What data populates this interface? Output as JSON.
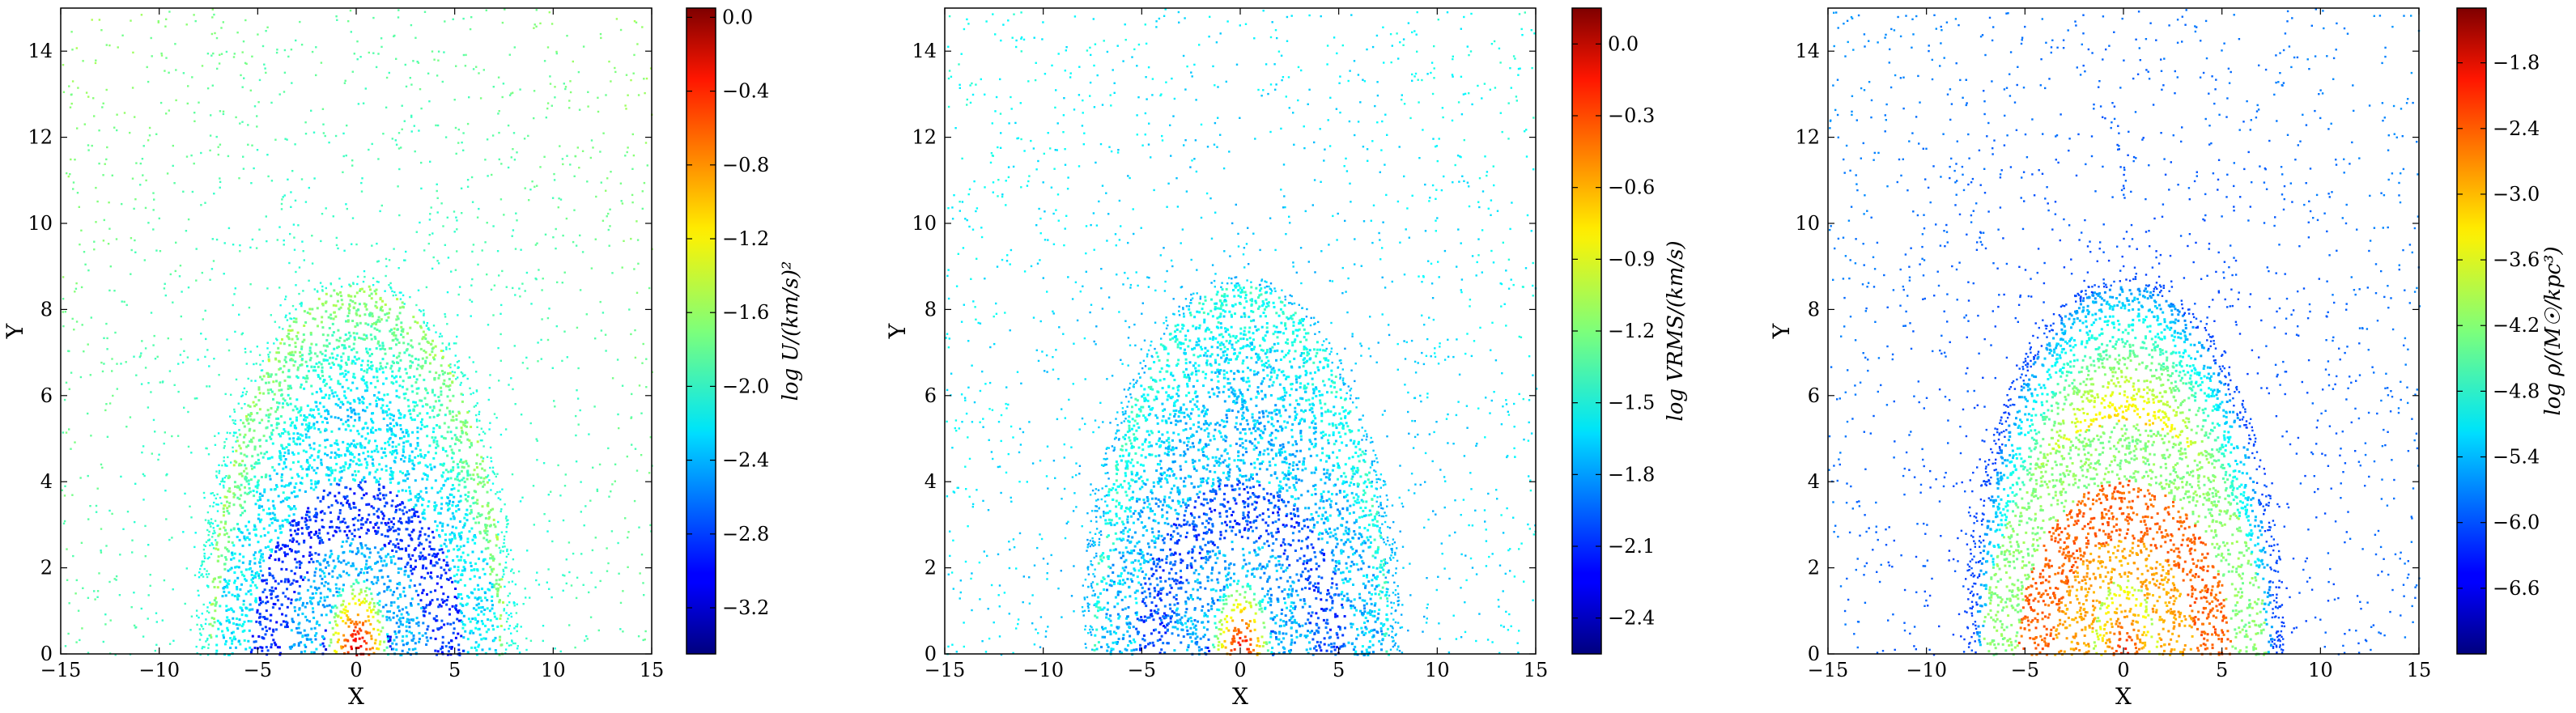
{
  "chart_data": [
    {
      "type": "scatter",
      "xlabel": "X",
      "ylabel": "Y",
      "xlim": [
        -15,
        15
      ],
      "ylim": [
        0,
        15
      ],
      "xticks": [
        -15,
        -10,
        -5,
        0,
        5,
        10,
        15
      ],
      "yticks": [
        0,
        2,
        4,
        6,
        8,
        10,
        12,
        14
      ],
      "colorbar": {
        "label": "log U/(km/s)²",
        "range": [
          -3.45,
          0.05
        ],
        "ticks": [
          0.0,
          -0.4,
          -0.8,
          -1.2,
          -1.6,
          -2.0,
          -2.4,
          -2.8,
          -3.2
        ],
        "tick_labels": [
          "0.0",
          "−0.4",
          "−0.8",
          "−1.2",
          "−1.6",
          "−2.0",
          "−2.4",
          "−2.8",
          "−3.2"
        ],
        "colormap": "jet"
      },
      "field": {
        "outer_min": -2.25,
        "outer_max": -1.6,
        "shell_values": [
          -3.0,
          -2.4,
          -2.85,
          -2.2
        ],
        "core_peak": -0.1
      }
    },
    {
      "type": "scatter",
      "xlabel": "X",
      "ylabel": "Y",
      "xlim": [
        -15,
        15
      ],
      "ylim": [
        0,
        15
      ],
      "xticks": [
        -15,
        -10,
        -5,
        0,
        5,
        10,
        15
      ],
      "yticks": [
        0,
        2,
        4,
        6,
        8,
        10,
        12,
        14
      ],
      "colorbar": {
        "label": "log VRMS/(km/s)",
        "range": [
          -2.55,
          0.15
        ],
        "ticks": [
          0.0,
          -0.3,
          -0.6,
          -0.9,
          -1.2,
          -1.5,
          -1.8,
          -2.1,
          -2.4
        ],
        "tick_labels": [
          "0.0",
          "−0.3",
          "−0.6",
          "−0.9",
          "−1.2",
          "−1.5",
          "−1.8",
          "−2.1",
          "−2.4"
        ],
        "colormap": "jet"
      },
      "field": {
        "outer_min": -1.85,
        "outer_max": -1.45,
        "shell_values": [
          -2.05,
          -1.75,
          -2.0,
          -1.7
        ],
        "core_peak": -0.05
      }
    },
    {
      "type": "scatter",
      "xlabel": "X",
      "ylabel": "Y",
      "xlim": [
        -15,
        15
      ],
      "ylim": [
        0,
        15
      ],
      "xticks": [
        -15,
        -10,
        -5,
        0,
        5,
        10,
        15
      ],
      "yticks": [
        0,
        2,
        4,
        6,
        8,
        10,
        12,
        14
      ],
      "colorbar": {
        "label": "log ρ/(M☉/kpc³)",
        "range": [
          -7.2,
          -1.3
        ],
        "ticks": [
          -1.8,
          -2.4,
          -3.0,
          -3.6,
          -4.2,
          -4.8,
          -5.4,
          -6.0,
          -6.6
        ],
        "tick_labels": [
          "−1.8",
          "−2.4",
          "−3.0",
          "−3.6",
          "−4.2",
          "−4.8",
          "−5.4",
          "−6.0",
          "−6.6"
        ],
        "colormap": "jet"
      },
      "field": {
        "outer_min": -6.3,
        "outer_max": -5.6,
        "shell_values": [
          -3.6,
          -3.0,
          -2.6,
          -4.2
        ],
        "core_peak": -2.1
      }
    }
  ]
}
